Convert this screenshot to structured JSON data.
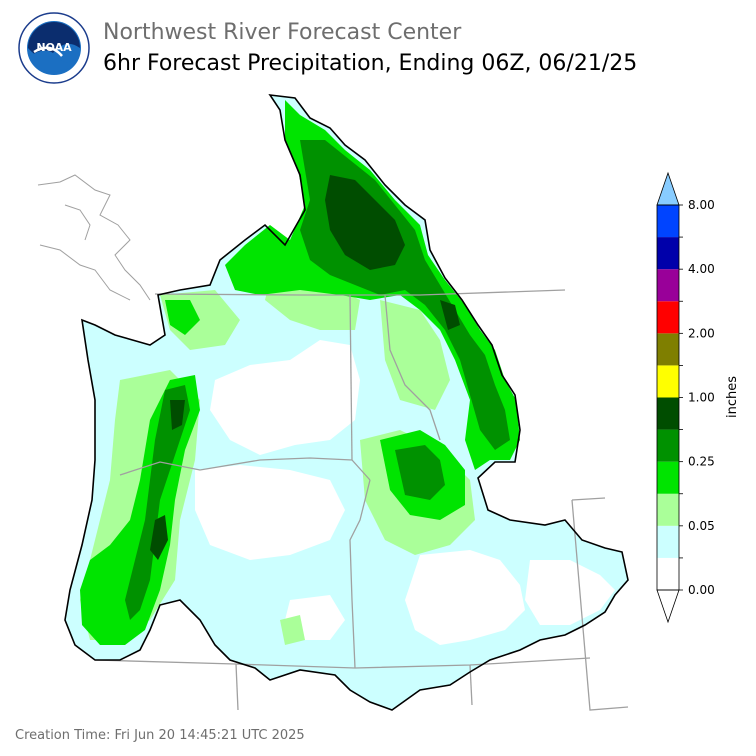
{
  "header": {
    "org": "Northwest River Forecast Center",
    "product": "6hr Forecast Precipitation, Ending 06Z, 06/21/25"
  },
  "logo": {
    "text": "NOAA",
    "ring_text": "NATIONAL OCEANIC AND ATMOSPHERIC ADMINISTRATION · U.S. DEPARTMENT OF COMMERCE"
  },
  "legend": {
    "unit": "inches",
    "tick_labels": [
      "8.00",
      "4.00",
      "2.00",
      "1.00",
      "0.25",
      "0.05",
      "0.00"
    ],
    "bins": [
      {
        "color": "#ffffff"
      },
      {
        "color": "#ccffff"
      },
      {
        "color": "#aaff99"
      },
      {
        "color": "#00e400"
      },
      {
        "color": "#009100"
      },
      {
        "color": "#004d00"
      },
      {
        "color": "#ffff00"
      },
      {
        "color": "#7f7f00"
      },
      {
        "color": "#ff0000"
      },
      {
        "color": "#990099"
      },
      {
        "color": "#0000aa"
      },
      {
        "color": "#0044ff"
      },
      {
        "color": "#88ccff"
      }
    ]
  },
  "footer": {
    "creation": "Creation Time: Fri Jun 20 14:45:21 UTC 2025"
  },
  "colors": {
    "light_cyan": "#ccffff",
    "light_green": "#aaff99",
    "green": "#00e400",
    "mid_green": "#009100",
    "dark_green": "#004d00",
    "state_lines": "#a0a0a0",
    "basin_outline": "#000000"
  }
}
